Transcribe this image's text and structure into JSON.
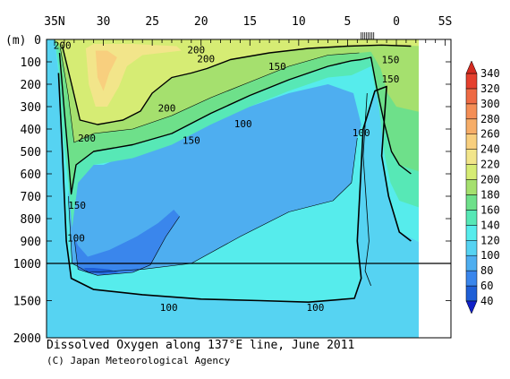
{
  "chart_data": {
    "type": "heatmap",
    "title": "Dissolved Oxygen along 137°E line, June 2011",
    "credit": "(C) Japan Meteorological Agency",
    "x_axis": {
      "tick_labels": [
        "35N",
        "30",
        "25",
        "20",
        "15",
        "10",
        "5",
        "0",
        "5S"
      ],
      "tick_values": [
        35,
        30,
        25,
        20,
        15,
        10,
        5,
        0,
        -5
      ],
      "range": [
        35,
        -5
      ]
    },
    "y_axis": {
      "unit_label": "(m)",
      "upper_tick_labels": [
        "0",
        "100",
        "200",
        "300",
        "400",
        "500",
        "600",
        "700",
        "800",
        "900",
        "1000"
      ],
      "upper_tick_values": [
        0,
        100,
        200,
        300,
        400,
        500,
        600,
        700,
        800,
        900,
        1000
      ],
      "lower_tick_labels": [
        "1500",
        "2000"
      ],
      "lower_tick_values": [
        1500,
        2000
      ],
      "range": [
        0,
        2000
      ],
      "scale_break_at": 1000
    },
    "colorbar": {
      "labels": [
        "40",
        "60",
        "80",
        "100",
        "120",
        "140",
        "160",
        "180",
        "200",
        "220",
        "240",
        "260",
        "280",
        "300",
        "320",
        "340"
      ],
      "levels": [
        40,
        60,
        80,
        100,
        120,
        140,
        160,
        180,
        200,
        220,
        240,
        260,
        280,
        300,
        320,
        340
      ],
      "colors": [
        "#1f5fd6",
        "#3a86ec",
        "#4eaef0",
        "#56d3f2",
        "#56ecec",
        "#57e8b6",
        "#6ee08a",
        "#a5e06e",
        "#d6ec74",
        "#f2e58a",
        "#f8cf7e",
        "#f6ad68",
        "#f48e56",
        "#ee6a44",
        "#e5402e"
      ]
    },
    "contour_labels": [
      {
        "text": "200",
        "lat": 34.2,
        "depth": 25
      },
      {
        "text": "200",
        "lat": 20.5,
        "depth": 45
      },
      {
        "text": "200",
        "lat": 19.5,
        "depth": 85
      },
      {
        "text": "150",
        "lat": 12.2,
        "depth": 120
      },
      {
        "text": "150",
        "lat": 0.6,
        "depth": 90
      },
      {
        "text": "150",
        "lat": 0.6,
        "depth": 175
      },
      {
        "text": "200",
        "lat": 23.5,
        "depth": 305
      },
      {
        "text": "200",
        "lat": 31.7,
        "depth": 440
      },
      {
        "text": "150",
        "lat": 21.0,
        "depth": 450
      },
      {
        "text": "100",
        "lat": 15.7,
        "depth": 375
      },
      {
        "text": "100",
        "lat": 3.6,
        "depth": 415
      },
      {
        "text": "150",
        "lat": 32.7,
        "depth": 740
      },
      {
        "text": "100",
        "lat": 32.8,
        "depth": 885
      },
      {
        "text": "100",
        "lat": 23.3,
        "depth": 1590
      },
      {
        "text": "100",
        "lat": 8.3,
        "depth": 1590
      }
    ]
  }
}
